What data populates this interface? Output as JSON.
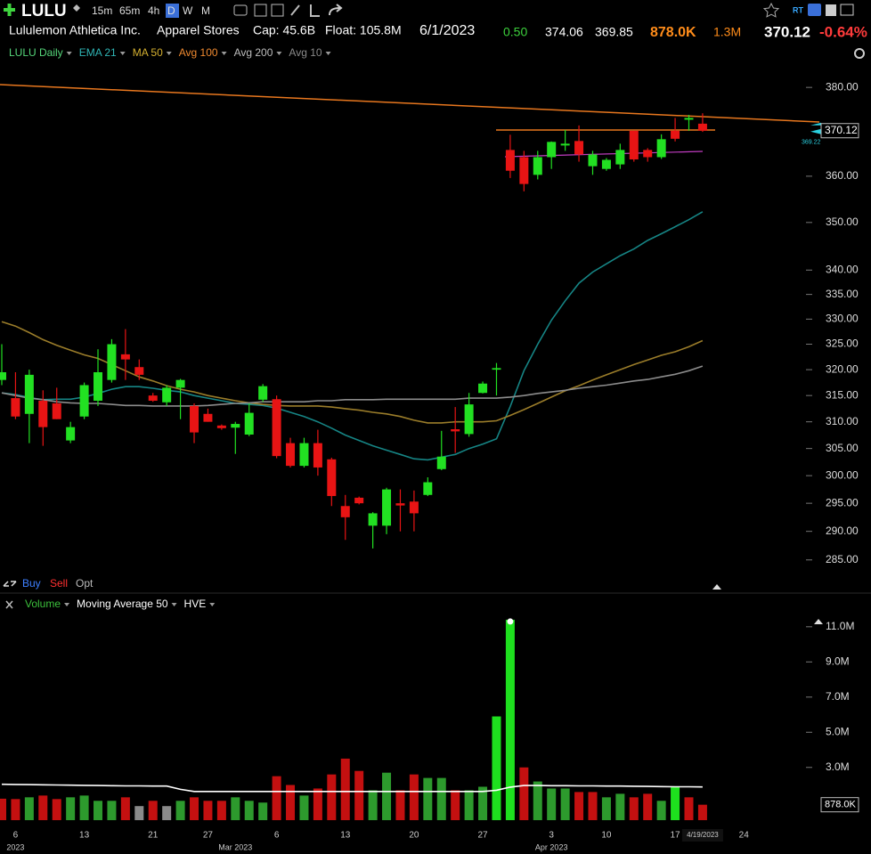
{
  "header": {
    "symbol": "LULU",
    "intervals": [
      "15m",
      "65m",
      "4h",
      "D",
      "W",
      "M"
    ],
    "rt": "RT",
    "company": "Lululemon Athletica Inc.",
    "industry": "Apparel Stores",
    "cap": "Cap: 45.6B",
    "float": "Float: 105.8M",
    "date": "6/1/2023",
    "change": "0.50",
    "high": "374.06",
    "low": "369.85",
    "volume": "878.0K",
    "avg_volume": "1.3M",
    "last": "370.12",
    "change_pct": "-0.64%"
  },
  "trade_bar": [
    "Buy",
    "Sell",
    "Opt"
  ],
  "chart_data": [
    {
      "type": "candlestick",
      "title": "LULU Daily",
      "log": true,
      "grid": false,
      "up_color": "#22e022",
      "down_color": "#e81414",
      "categories": [
        null,
        "6",
        null,
        null,
        null,
        null,
        "13",
        null,
        null,
        null,
        null,
        "21",
        null,
        null,
        null,
        "27",
        null,
        null,
        null,
        null,
        "6",
        null,
        null,
        null,
        null,
        "13",
        null,
        null,
        null,
        null,
        "20",
        null,
        null,
        null,
        null,
        "27",
        null,
        null,
        null,
        null,
        "3",
        null,
        null,
        null,
        "10",
        null,
        null,
        null,
        null,
        "17",
        null,
        null,
        null,
        null,
        "24"
      ],
      "period_labels": [
        null,
        "2023",
        null,
        null,
        null,
        null,
        null,
        null,
        null,
        null,
        null,
        null,
        null,
        null,
        null,
        null,
        null,
        "Mar 2023",
        null,
        null,
        null,
        null,
        null,
        null,
        null,
        null,
        null,
        null,
        null,
        null,
        null,
        null,
        null,
        null,
        null,
        null,
        null,
        null,
        null,
        null,
        "Apr 2023",
        null,
        null,
        null,
        null,
        null,
        null,
        null,
        null,
        null,
        null,
        null,
        null,
        null,
        null
      ],
      "last_date": "4/19/2023",
      "small_label": "369.22",
      "open": [
        318,
        314.5,
        311.5,
        314,
        313.5,
        306.5,
        311,
        314,
        318,
        323,
        320.5,
        315,
        313.7,
        316.5,
        313,
        311.5,
        309.3,
        308.9,
        307.6,
        314.2,
        314.3,
        306,
        301.8,
        306,
        303,
        294.5,
        296,
        291,
        291,
        295,
        295.3,
        296.5,
        301.2,
        308.6,
        307.7,
        315.5,
        320,
        365.8,
        364.2,
        360.3,
        364.2,
        366.8,
        367.8,
        362.2,
        361.6,
        362.6,
        370.1,
        365.8,
        364.2,
        370.1,
        372.6,
        371.7,
        null,
        null,
        null
      ],
      "high": [
        325,
        319.5,
        320,
        316,
        316.5,
        310,
        317.5,
        324,
        326,
        328,
        322,
        315.5,
        317,
        318.2,
        313.5,
        312.5,
        309.5,
        310,
        313.5,
        317.2,
        315,
        307,
        307,
        308.5,
        303.3,
        296.5,
        296.2,
        293.4,
        297.8,
        297.5,
        297.3,
        299.7,
        308.3,
        312.8,
        315.5,
        317.7,
        321.3,
        369.2,
        365.6,
        365.6,
        367.7,
        370.3,
        371.3,
        365.6,
        364,
        367.2,
        370.1,
        366.2,
        369.3,
        373,
        373.7,
        374.06,
        null,
        null,
        null
      ],
      "low": [
        317,
        310.5,
        306,
        305.5,
        310.5,
        306,
        310.5,
        313,
        317.5,
        318,
        318,
        313.8,
        313,
        310.5,
        306,
        310,
        308.5,
        304,
        307.3,
        313.8,
        303.2,
        301.5,
        301.5,
        300,
        294.5,
        288.5,
        294.8,
        287,
        289.5,
        290,
        290,
        296.3,
        301,
        304.2,
        307.2,
        315.4,
        315,
        359.6,
        356.7,
        359.3,
        361.6,
        365.6,
        363.2,
        360.3,
        361.2,
        361.6,
        363.2,
        363.2,
        363.8,
        367.7,
        370.1,
        369.85,
        null,
        null,
        null
      ],
      "close": [
        319.5,
        311,
        319,
        309,
        310.5,
        309,
        317,
        319.5,
        325,
        322,
        319,
        314,
        316.5,
        318,
        308,
        310,
        308.8,
        309.6,
        311.7,
        316.8,
        303.6,
        301.8,
        306,
        301.5,
        296.3,
        292.5,
        295,
        293.2,
        297.5,
        294.6,
        293.2,
        298.8,
        303.5,
        308.2,
        313.3,
        317.3,
        320.3,
        361.2,
        358.3,
        364.2,
        367.6,
        367.2,
        364.8,
        364.8,
        363.6,
        365.8,
        363.7,
        364.2,
        368.2,
        368.3,
        373,
        370.12,
        null,
        null,
        null
      ],
      "studies": [
        {
          "name": "EMA 21",
          "color": "#2fb5b5",
          "line_color": "#168585",
          "values": [
            315.5,
            315.2,
            314.6,
            314.2,
            314.3,
            314.3,
            314.7,
            315.4,
            316.2,
            316.7,
            316.7,
            316.4,
            316,
            315.7,
            315,
            314.5,
            314,
            313.5,
            313.3,
            313.1,
            312.6,
            311.8,
            311,
            310,
            308.8,
            307.5,
            306.5,
            305.5,
            304.7,
            303.9,
            303.1,
            302.9,
            303.4,
            303.9,
            305,
            305.8,
            306.8,
            312.9,
            319.8,
            325,
            329.8,
            333.7,
            337.3,
            339.6,
            341.3,
            343,
            344.4,
            346.2,
            347.6,
            349.1,
            350.6,
            352.3,
            null,
            null,
            null
          ]
        },
        {
          "name": "MA 50",
          "color": "#d4b030",
          "line_color": "#9b7d2a",
          "values": [
            329.5,
            328.6,
            327.3,
            325.9,
            324.8,
            323.8,
            322.9,
            322.2,
            321,
            319.8,
            318.6,
            317.8,
            316.9,
            316.2,
            315.7,
            315,
            314.5,
            314,
            313.6,
            313.3,
            313.1,
            313,
            313,
            313,
            312.8,
            312.5,
            312.2,
            311.8,
            311.5,
            311,
            310.3,
            309.8,
            309.8,
            310,
            310,
            310,
            310.2,
            311.2,
            312.3,
            313.5,
            314.7,
            315.9,
            316.9,
            318,
            319,
            320,
            321,
            321.9,
            322.8,
            323.5,
            324.5,
            325.7,
            null,
            null,
            null
          ]
        },
        {
          "name": "Avg 100",
          "color": "#f08a30"
        },
        {
          "name": "Avg 200",
          "color": "#bdbdbd",
          "line_color": "#8c8c8c",
          "values": [
            315.5,
            315,
            314.5,
            314.2,
            313.8,
            313.6,
            313.5,
            313.5,
            313.3,
            313.1,
            313.1,
            313,
            313,
            313,
            313,
            313.1,
            313.3,
            313.5,
            313.6,
            313.8,
            313.8,
            313.8,
            313.8,
            314,
            314,
            314.2,
            314.2,
            314.2,
            314.3,
            314.3,
            314.3,
            314.3,
            314.3,
            314.3,
            314.5,
            314.5,
            314.5,
            314.7,
            315,
            315.4,
            315.7,
            316,
            316.4,
            316.7,
            317,
            317.4,
            317.8,
            318.1,
            318.6,
            319.1,
            319.8,
            320.7,
            null,
            null,
            null
          ]
        },
        {
          "name": "Avg 10",
          "color": "#8a8a8a"
        }
      ],
      "ylim": [
        282.5,
        384.8
      ],
      "yticks": [
        {
          "value": 380,
          "label": "380.00"
        },
        {
          "value": 360,
          "label": "360.00"
        },
        {
          "value": 350,
          "label": "350.00"
        },
        {
          "value": 340,
          "label": "340.00"
        },
        {
          "value": 335,
          "label": "335.00"
        },
        {
          "value": 330,
          "label": "330.00"
        },
        {
          "value": 325,
          "label": "325.00"
        },
        {
          "value": 320,
          "label": "320.00"
        },
        {
          "value": 315,
          "label": "315.00"
        },
        {
          "value": 310,
          "label": "310.00"
        },
        {
          "value": 305,
          "label": "305.00"
        },
        {
          "value": 300,
          "label": "300.00"
        },
        {
          "value": 295,
          "label": "295.00"
        },
        {
          "value": 290,
          "label": "290.00"
        },
        {
          "value": 285,
          "label": "285.00"
        }
      ]
    },
    {
      "type": "bar",
      "title": "Volume",
      "title_color": "#3cc03c",
      "last_label": "878.0K",
      "values": [
        1220000,
        1200000,
        1300000,
        1400000,
        1200000,
        1300000,
        1400000,
        1100000,
        1100000,
        1300000,
        800000,
        1100000,
        800000,
        1100000,
        1300000,
        1100000,
        1100000,
        1300000,
        1100000,
        1000000,
        2500000,
        2000000,
        1400000,
        1800000,
        2600000,
        3500000,
        2800000,
        1700000,
        2700000,
        1700000,
        2600000,
        2400000,
        2400000,
        1700000,
        1700000,
        1900000,
        5900000,
        11400000,
        3000000,
        2200000,
        1800000,
        1800000,
        1600000,
        1600000,
        1300000,
        1500000,
        1300000,
        1500000,
        1100000,
        1900000,
        1300000,
        878000,
        null,
        null,
        null
      ],
      "colors": [
        "#c41010",
        "#c41010",
        "#2d9a2d",
        "#c41010",
        "#c41010",
        "#2d9a2d",
        "#2d9a2d",
        "#2d9a2d",
        "#2d9a2d",
        "#c41010",
        "#8a8a8a",
        "#c41010",
        "#8a8a8a",
        "#2d9a2d",
        "#c41010",
        "#c41010",
        "#c41010",
        "#2d9a2d",
        "#2d9a2d",
        "#2d9a2d",
        "#c41010",
        "#c41010",
        "#2d9a2d",
        "#c41010",
        "#c41010",
        "#c41010",
        "#c41010",
        "#2d9a2d",
        "#2d9a2d",
        "#c41010",
        "#c41010",
        "#2d9a2d",
        "#2d9a2d",
        "#c41010",
        "#2d9a2d",
        "#2d9a2d",
        "#1ee01e",
        "#1ee01e",
        "#c41010",
        "#2d9a2d",
        "#2d9a2d",
        "#2d9a2d",
        "#c41010",
        "#c41010",
        "#2d9a2d",
        "#2d9a2d",
        "#c41010",
        "#c41010",
        "#2d9a2d",
        "#1ee01e",
        "#c41010",
        "#c41010",
        null,
        null,
        null
      ],
      "studies": [
        {
          "name": "Moving Average 50",
          "color": "#ffffff",
          "line_color": "#ffffff",
          "values": [
            2040000,
            2030000,
            2020000,
            2010000,
            2000000,
            1990000,
            1980000,
            1970000,
            1960000,
            1950000,
            1950000,
            1940000,
            1940000,
            1750000,
            1630000,
            1630000,
            1630000,
            1630000,
            1630000,
            1630000,
            1630000,
            1630000,
            1630000,
            1630000,
            1630000,
            1630000,
            1630000,
            1630000,
            1630000,
            1630000,
            1630000,
            1630000,
            1630000,
            1630000,
            1630000,
            1630000,
            1700000,
            1880000,
            1970000,
            1970000,
            1960000,
            1960000,
            1950000,
            1950000,
            1940000,
            1940000,
            1930000,
            1920000,
            1910000,
            1900000,
            1900000,
            1890000,
            null,
            null,
            null
          ]
        },
        {
          "name": "HVE",
          "color": "#ffffff"
        }
      ],
      "ylim": [
        0,
        11700000
      ],
      "yticks": [
        {
          "value": 11000000,
          "label": "11.0M"
        },
        {
          "value": 9000000,
          "label": "9.0M"
        },
        {
          "value": 7000000,
          "label": "7.0M"
        },
        {
          "value": 5000000,
          "label": "5.0M"
        },
        {
          "value": 3000000,
          "label": "3.0M"
        }
      ]
    }
  ]
}
